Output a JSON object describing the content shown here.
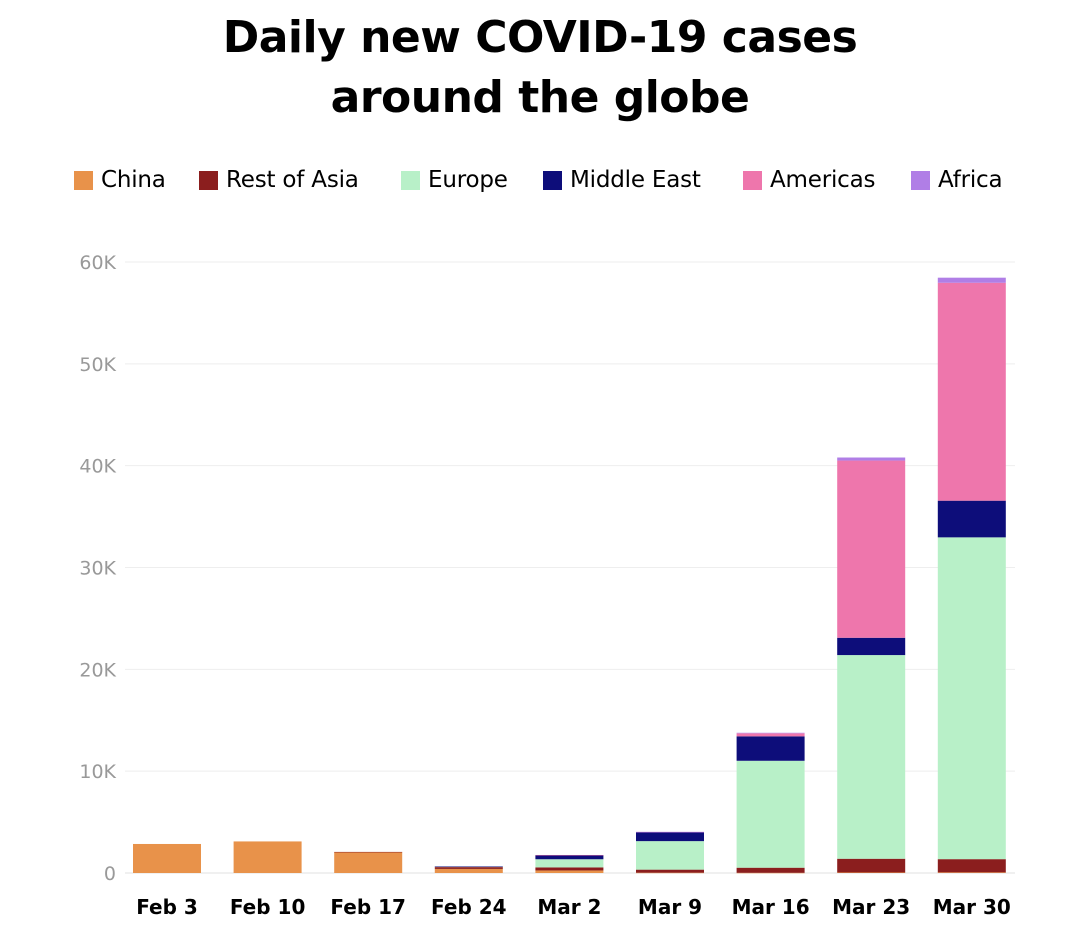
{
  "chart_data": {
    "type": "bar",
    "stacked": true,
    "title_lines": [
      "Daily new COVID-19 cases",
      "around the globe"
    ],
    "categories": [
      "Feb 3",
      "Feb 10",
      "Feb 17",
      "Feb 24",
      "Mar 2",
      "Mar 9",
      "Mar 16",
      "Mar 23",
      "Mar 30"
    ],
    "ylim": [
      0,
      60000
    ],
    "yticks": [
      0,
      10000,
      20000,
      30000,
      40000,
      50000,
      60000
    ],
    "ytick_labels": [
      "0",
      "10K",
      "20K",
      "30K",
      "40K",
      "50K",
      "60K"
    ],
    "grid": true,
    "legend_position": "top",
    "series": [
      {
        "name": "China",
        "color": "#E8924A",
        "values": [
          2850,
          3100,
          2050,
          400,
          250,
          30,
          20,
          50,
          60
        ]
      },
      {
        "name": "Rest of Asia",
        "color": "#8B1E1E",
        "values": [
          0,
          0,
          20,
          180,
          300,
          300,
          500,
          1350,
          1300
        ]
      },
      {
        "name": "Europe",
        "color": "#B8F0C8",
        "values": [
          0,
          0,
          0,
          50,
          800,
          2800,
          10500,
          20000,
          31600
        ]
      },
      {
        "name": "Middle East",
        "color": "#0D0D7A",
        "values": [
          0,
          0,
          0,
          10,
          400,
          850,
          2400,
          1700,
          3600
        ]
      },
      {
        "name": "Americas",
        "color": "#EE76AC",
        "values": [
          0,
          0,
          0,
          0,
          20,
          50,
          300,
          17400,
          21400
        ]
      },
      {
        "name": "Africa",
        "color": "#B07EE6",
        "values": [
          0,
          0,
          0,
          0,
          0,
          10,
          50,
          300,
          500
        ]
      }
    ]
  }
}
